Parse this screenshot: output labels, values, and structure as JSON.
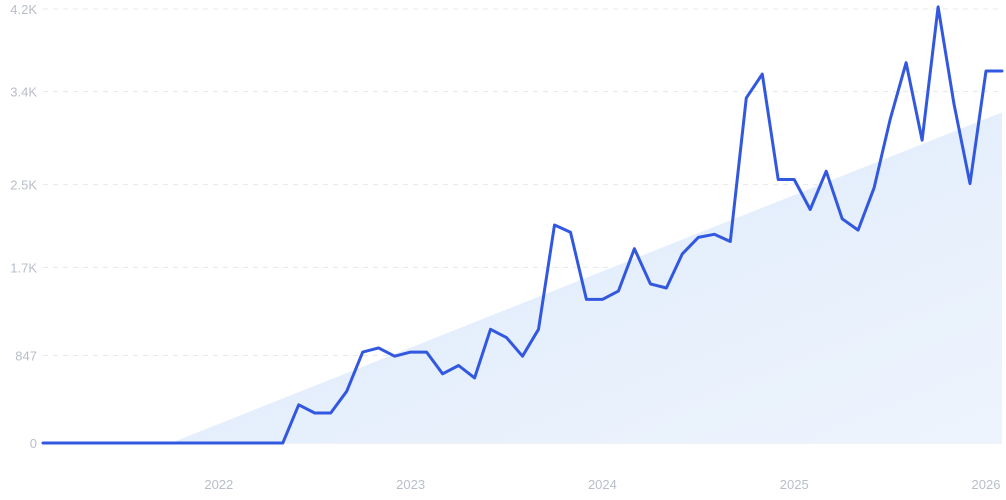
{
  "chart_data": {
    "type": "line",
    "x_start": "2021-02",
    "x_end": "2026-02",
    "xlim": [
      "2021-02",
      "2026-02"
    ],
    "ylim": [
      0,
      4200
    ],
    "y_ticks": [
      {
        "value": 0,
        "label": "0"
      },
      {
        "value": 847,
        "label": "847"
      },
      {
        "value": 1700,
        "label": "1.7K"
      },
      {
        "value": 2500,
        "label": "2.5K"
      },
      {
        "value": 3400,
        "label": "3.4K"
      },
      {
        "value": 4200,
        "label": "4.2K"
      }
    ],
    "x_ticks": [
      {
        "value": "2022-01",
        "label": "2022"
      },
      {
        "value": "2023-01",
        "label": "2023"
      },
      {
        "value": "2024-01",
        "label": "2024"
      },
      {
        "value": "2025-01",
        "label": "2025"
      },
      {
        "value": "2026-01",
        "label": "2026"
      }
    ],
    "grid": true,
    "series": [
      {
        "x": [
          "2021-02",
          "2021-03",
          "2021-04",
          "2021-05",
          "2021-06",
          "2021-07",
          "2021-08",
          "2021-09",
          "2021-10",
          "2021-11",
          "2021-12",
          "2022-01",
          "2022-02",
          "2022-03",
          "2022-04",
          "2022-05",
          "2022-06",
          "2022-07",
          "2022-08",
          "2022-09",
          "2022-10",
          "2022-11",
          "2022-12",
          "2023-01",
          "2023-02",
          "2023-03",
          "2023-04",
          "2023-05",
          "2023-06",
          "2023-07",
          "2023-08",
          "2023-09",
          "2023-10",
          "2023-11",
          "2023-12",
          "2024-01",
          "2024-02",
          "2024-03",
          "2024-04",
          "2024-05",
          "2024-06",
          "2024-07",
          "2024-08",
          "2024-09",
          "2024-10",
          "2024-11",
          "2024-12",
          "2025-01",
          "2025-02",
          "2025-03",
          "2025-04",
          "2025-05",
          "2025-06",
          "2025-07",
          "2025-08",
          "2025-09",
          "2025-10",
          "2025-11",
          "2025-12",
          "2026-01",
          "2026-02"
        ],
        "values": [
          0,
          0,
          0,
          0,
          0,
          0,
          0,
          0,
          0,
          0,
          0,
          0,
          0,
          0,
          0,
          0,
          370,
          290,
          290,
          500,
          880,
          920,
          840,
          880,
          880,
          670,
          750,
          630,
          1100,
          1020,
          840,
          1100,
          2110,
          2040,
          1390,
          1390,
          1470,
          1880,
          1540,
          1500,
          1830,
          1990,
          2020,
          1950,
          3340,
          3570,
          2550,
          2550,
          2260,
          2630,
          2170,
          2060,
          2470,
          3130,
          3680,
          2930,
          4220,
          3280,
          2510,
          3600,
          3600
        ]
      }
    ],
    "trend": {
      "x": [
        "2021-10",
        "2026-02"
      ],
      "values": [
        0,
        3200
      ]
    }
  }
}
